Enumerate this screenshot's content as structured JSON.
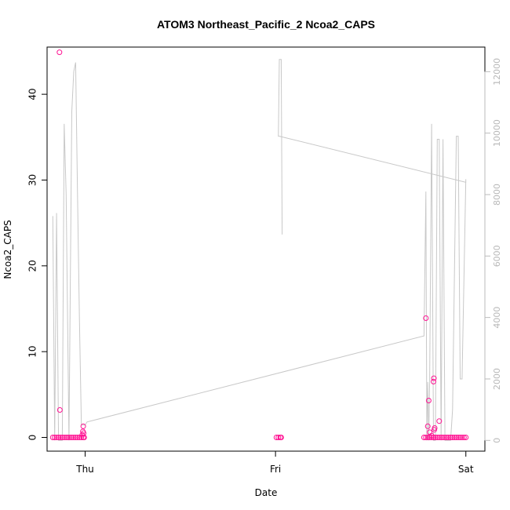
{
  "chart_data": {
    "type": "scatter",
    "title": "ATOM3 Northeast_Pacific_2 Ncoa2_CAPS",
    "xlabel": "Date",
    "ylabel": "Ncoa2_CAPS",
    "x_tick_labels": [
      "Thu",
      "Fri",
      "Sat"
    ],
    "xlim_days": [
      -0.2,
      2.1
    ],
    "left_axis": {
      "ylim": [
        -1.6,
        45.5
      ],
      "ticks": [
        0,
        10,
        20,
        30,
        40
      ]
    },
    "right_axis": {
      "ylim": [
        -350,
        12800
      ],
      "ticks": [
        0,
        2000,
        4000,
        6000,
        8000,
        10000,
        12000
      ],
      "color": "#bbbbbb"
    },
    "colors": {
      "points": "#ff1493",
      "line": "#c8c8c8",
      "axes": "#000000"
    },
    "series": [
      {
        "kind": "points",
        "axis": "left",
        "points": [
          [
            -0.17,
            0
          ],
          [
            -0.16,
            0
          ],
          [
            -0.15,
            0
          ],
          [
            -0.14,
            0
          ],
          [
            -0.13,
            0
          ],
          [
            -0.12,
            0
          ],
          [
            -0.11,
            0
          ],
          [
            -0.1,
            0
          ],
          [
            -0.09,
            0
          ],
          [
            -0.08,
            0
          ],
          [
            -0.07,
            0
          ],
          [
            -0.06,
            0
          ],
          [
            -0.05,
            0
          ],
          [
            -0.04,
            0
          ],
          [
            -0.03,
            0
          ],
          [
            -0.02,
            0
          ],
          [
            -0.01,
            0
          ],
          [
            -0.005,
            0
          ],
          [
            -0.015,
            0.3
          ],
          [
            -0.012,
            0.7
          ],
          [
            -0.01,
            1.3
          ],
          [
            -0.008,
            0.5
          ],
          [
            -0.135,
            44.9
          ],
          [
            -0.133,
            3.2
          ],
          [
            1.005,
            0
          ],
          [
            1.015,
            0
          ],
          [
            1.025,
            0
          ],
          [
            1.03,
            0
          ],
          [
            1.78,
            0
          ],
          [
            1.79,
            0
          ],
          [
            1.8,
            0
          ],
          [
            1.81,
            0
          ],
          [
            1.82,
            0
          ],
          [
            1.83,
            0
          ],
          [
            1.84,
            0
          ],
          [
            1.85,
            0
          ],
          [
            1.86,
            0
          ],
          [
            1.87,
            0
          ],
          [
            1.88,
            0
          ],
          [
            1.89,
            0
          ],
          [
            1.9,
            0
          ],
          [
            1.91,
            0
          ],
          [
            1.92,
            0
          ],
          [
            1.93,
            0
          ],
          [
            1.94,
            0
          ],
          [
            1.95,
            0
          ],
          [
            1.96,
            0
          ],
          [
            1.97,
            0
          ],
          [
            1.98,
            0
          ],
          [
            1.99,
            0
          ],
          [
            2.0,
            0
          ],
          [
            1.79,
            13.9
          ],
          [
            1.8,
            1.3
          ],
          [
            1.805,
            4.3
          ],
          [
            1.81,
            0.6
          ],
          [
            1.82,
            0.2
          ],
          [
            1.83,
            6.5
          ],
          [
            1.832,
            6.9
          ],
          [
            1.834,
            0.9
          ],
          [
            1.836,
            1.1
          ],
          [
            1.86,
            1.9
          ]
        ]
      },
      {
        "kind": "line",
        "axis": "right",
        "points": [
          [
            -0.17,
            7300
          ],
          [
            -0.16,
            0
          ],
          [
            -0.15,
            7400
          ],
          [
            -0.14,
            0
          ],
          [
            -0.12,
            0
          ],
          [
            -0.11,
            10300
          ],
          [
            -0.1,
            8000
          ],
          [
            -0.085,
            0
          ],
          [
            -0.07,
            10700
          ],
          [
            -0.06,
            12000
          ],
          [
            -0.05,
            12300
          ],
          [
            -0.04,
            8000
          ],
          [
            -0.03,
            4000
          ],
          [
            -0.02,
            500
          ],
          [
            0.0,
            500
          ],
          [
            0.01,
            600
          ],
          [
            1.78,
            3400
          ],
          [
            1.79,
            8100
          ],
          [
            1.795,
            0
          ],
          [
            1.8,
            1900
          ],
          [
            1.805,
            0
          ],
          [
            1.81,
            1900
          ],
          [
            1.82,
            10300
          ],
          [
            1.83,
            0
          ],
          [
            1.84,
            0
          ],
          [
            1.85,
            9800
          ],
          [
            1.86,
            9800
          ],
          [
            1.87,
            0
          ],
          [
            1.88,
            9800
          ],
          [
            1.89,
            0
          ],
          [
            1.92,
            0
          ],
          [
            1.93,
            1000
          ],
          [
            1.95,
            9900
          ],
          [
            1.96,
            9900
          ],
          [
            1.97,
            2000
          ],
          [
            1.98,
            2000
          ],
          [
            2.0,
            8500
          ],
          [
            2.0,
            8400
          ],
          [
            1.02,
            9900
          ],
          [
            1.015,
            9900
          ],
          [
            1.02,
            12400
          ],
          [
            1.03,
            12400
          ],
          [
            1.035,
            6700
          ]
        ]
      }
    ],
    "grid": false,
    "legend": "none"
  }
}
